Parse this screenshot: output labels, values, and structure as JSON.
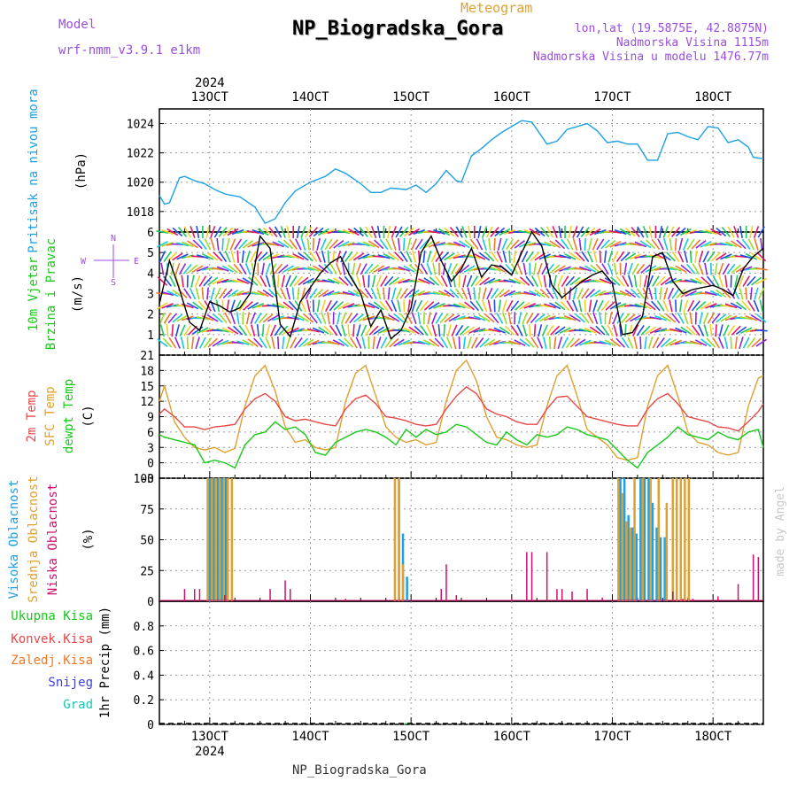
{
  "header": {
    "subtitle": "Meteogram",
    "title": "NP_Biogradska_Gora",
    "model_label": "Model",
    "model_name": "wrf-nmm_v3.9.1 e1km",
    "coords": "lon,lat (19.5875E, 42.8875N)",
    "elevation": "Nadmorska Visina 1115m",
    "model_elevation": "Nadmorska Visina u modelu 1476.77m",
    "credit": "made by Angel",
    "footer": "NP_Biogradska_Gora"
  },
  "colors": {
    "pressure": "#1ea0e6",
    "temp2m": "#e84848",
    "sfc": "#e0a030",
    "dew": "#18c818",
    "cloud_high": "#1ea0e6",
    "cloud_mid": "#e0a030",
    "cloud_low": "#d0106e",
    "title_grey": "#888888"
  },
  "time_axis": {
    "year_top": "2024",
    "year_bottom": "2024",
    "start_day": 12.5,
    "end_day": 18.5,
    "ticks": [
      {
        "day": 13,
        "label": "13OCT"
      },
      {
        "day": 14,
        "label": "14OCT"
      },
      {
        "day": 15,
        "label": "15OCT"
      },
      {
        "day": 16,
        "label": "16OCT"
      },
      {
        "day": 17,
        "label": "17OCT"
      },
      {
        "day": 18,
        "label": "18OCT"
      }
    ]
  },
  "chart_data": [
    {
      "type": "line",
      "panel": "pressure",
      "labels": [
        "Pritisak na nivou mora",
        "(hPa)"
      ],
      "ylim": [
        1016.6,
        1025.0
      ],
      "yticks": [
        1018,
        1020,
        1022,
        1024
      ],
      "series": [
        {
          "name": "Pritisak na nivou mora",
          "x": [
            12.5,
            12.55,
            12.6,
            12.7,
            12.75,
            12.85,
            12.95,
            13.05,
            13.15,
            13.3,
            13.45,
            13.55,
            13.65,
            13.75,
            13.85,
            14.0,
            14.15,
            14.25,
            14.35,
            14.5,
            14.6,
            14.7,
            14.8,
            14.95,
            15.05,
            15.15,
            15.25,
            15.35,
            15.45,
            15.5,
            15.6,
            15.7,
            15.8,
            15.9,
            16.0,
            16.1,
            16.2,
            16.25,
            16.35,
            16.45,
            16.55,
            16.65,
            16.75,
            16.85,
            16.95,
            17.05,
            17.15,
            17.25,
            17.35,
            17.45,
            17.55,
            17.65,
            17.75,
            17.85,
            17.95,
            18.05,
            18.15,
            18.25,
            18.35,
            18.4,
            18.5
          ],
          "y": [
            1019.1,
            1018.5,
            1018.6,
            1020.3,
            1020.4,
            1020.1,
            1019.9,
            1019.5,
            1019.2,
            1019.0,
            1018.3,
            1017.2,
            1017.5,
            1018.6,
            1019.4,
            1020.0,
            1020.4,
            1020.9,
            1020.6,
            1019.9,
            1019.3,
            1019.3,
            1019.6,
            1019.5,
            1019.8,
            1019.3,
            1019.9,
            1020.8,
            1020.1,
            1020.0,
            1021.8,
            1022.3,
            1022.9,
            1023.4,
            1023.8,
            1024.2,
            1024.1,
            1023.6,
            1022.6,
            1022.8,
            1023.6,
            1023.8,
            1024.0,
            1023.5,
            1022.7,
            1022.8,
            1022.6,
            1022.6,
            1021.5,
            1021.5,
            1023.3,
            1023.4,
            1023.1,
            1022.9,
            1023.8,
            1023.7,
            1022.7,
            1022.9,
            1022.4,
            1021.7,
            1021.6
          ]
        }
      ]
    },
    {
      "type": "wind",
      "panel": "wind",
      "labels": [
        "10m Vjetar",
        "Brzina i Pravac",
        "(m/s)"
      ],
      "compass": [
        "N",
        "W",
        "E",
        "S"
      ],
      "ylim": [
        0,
        6
      ],
      "yticks": [
        1,
        2,
        3,
        4,
        5,
        6
      ],
      "series": [
        {
          "name": "Brzina",
          "x": [
            12.5,
            12.6,
            12.7,
            12.8,
            12.9,
            13.0,
            13.1,
            13.2,
            13.3,
            13.4,
            13.5,
            13.6,
            13.7,
            13.8,
            13.9,
            14.0,
            14.1,
            14.2,
            14.3,
            14.4,
            14.5,
            14.6,
            14.7,
            14.8,
            14.9,
            15.0,
            15.1,
            15.2,
            15.3,
            15.4,
            15.5,
            15.6,
            15.7,
            15.8,
            15.9,
            16.0,
            16.1,
            16.2,
            16.3,
            16.4,
            16.5,
            16.6,
            16.7,
            16.8,
            16.9,
            17.0,
            17.1,
            17.2,
            17.3,
            17.4,
            17.5,
            17.6,
            17.7,
            17.8,
            17.9,
            18.0,
            18.1,
            18.2,
            18.3,
            18.4,
            18.5
          ],
          "y": [
            2.5,
            4.6,
            3.2,
            1.6,
            1.2,
            2.6,
            2.4,
            2.1,
            2.3,
            3.0,
            5.8,
            5.2,
            1.5,
            0.9,
            2.6,
            3.3,
            4.0,
            4.5,
            4.8,
            3.8,
            3.0,
            1.4,
            2.2,
            0.8,
            1.2,
            2.3,
            5.0,
            5.8,
            4.6,
            3.6,
            4.2,
            5.2,
            3.8,
            4.4,
            4.3,
            3.9,
            5.0,
            6.0,
            5.3,
            3.4,
            2.8,
            3.2,
            3.6,
            3.9,
            4.1,
            3.5,
            1.0,
            1.1,
            1.9,
            4.8,
            5.0,
            3.6,
            3.0,
            3.2,
            3.3,
            3.4,
            3.2,
            2.9,
            4.2,
            4.8,
            5.2
          ]
        }
      ]
    },
    {
      "type": "line",
      "panel": "temperature",
      "labels": [
        "2m Temp",
        "SFC Temp",
        "dewpt Temp",
        "(C)"
      ],
      "ylim": [
        -3,
        21
      ],
      "yticks": [
        -3,
        0,
        3,
        6,
        9,
        12,
        15,
        18,
        21
      ],
      "series": [
        {
          "name": "2m Temp",
          "x": [
            12.5,
            12.55,
            12.65,
            12.75,
            12.85,
            12.95,
            13.05,
            13.15,
            13.25,
            13.35,
            13.45,
            13.55,
            13.65,
            13.75,
            13.85,
            13.95,
            14.05,
            14.15,
            14.25,
            14.35,
            14.45,
            14.55,
            14.65,
            14.75,
            14.85,
            14.95,
            15.05,
            15.15,
            15.25,
            15.35,
            15.45,
            15.55,
            15.65,
            15.75,
            15.85,
            15.95,
            16.05,
            16.15,
            16.25,
            16.35,
            16.45,
            16.55,
            16.65,
            16.75,
            16.85,
            16.95,
            17.05,
            17.15,
            17.25,
            17.35,
            17.45,
            17.55,
            17.65,
            17.75,
            17.85,
            17.95,
            18.05,
            18.15,
            18.25,
            18.35,
            18.45,
            18.5
          ],
          "y": [
            9.5,
            10.5,
            9.0,
            7.0,
            7.0,
            6.5,
            7.0,
            7.2,
            7.5,
            10.5,
            12.5,
            13.5,
            12.0,
            9.0,
            8.2,
            8.5,
            8.0,
            7.5,
            7.2,
            10.5,
            12.5,
            13.2,
            11.5,
            9.0,
            8.7,
            8.2,
            7.5,
            7.2,
            7.5,
            10.5,
            13.0,
            14.8,
            13.5,
            10.5,
            9.5,
            9.0,
            8.0,
            7.5,
            7.5,
            10.5,
            12.8,
            13.0,
            11.0,
            9.0,
            8.5,
            8.0,
            7.5,
            7.2,
            7.2,
            10.5,
            12.5,
            13.5,
            11.5,
            9.0,
            8.5,
            8.0,
            7.0,
            6.8,
            6.2,
            8.0,
            10.0,
            11.5
          ]
        },
        {
          "name": "SFC Temp",
          "x": [
            12.5,
            12.55,
            12.65,
            12.75,
            12.85,
            12.95,
            13.05,
            13.15,
            13.25,
            13.35,
            13.45,
            13.55,
            13.65,
            13.75,
            13.85,
            13.95,
            14.05,
            14.15,
            14.25,
            14.35,
            14.45,
            14.55,
            14.65,
            14.75,
            14.85,
            14.95,
            15.05,
            15.15,
            15.25,
            15.35,
            15.45,
            15.55,
            15.65,
            15.75,
            15.85,
            15.95,
            16.05,
            16.15,
            16.25,
            16.35,
            16.45,
            16.55,
            16.65,
            16.75,
            16.85,
            16.95,
            17.05,
            17.15,
            17.25,
            17.35,
            17.45,
            17.55,
            17.65,
            17.75,
            17.85,
            17.95,
            18.05,
            18.15,
            18.25,
            18.35,
            18.45,
            18.5
          ],
          "y": [
            12.0,
            15.0,
            8.0,
            5.0,
            3.0,
            2.5,
            3.0,
            2.0,
            2.8,
            11.0,
            17.0,
            19.0,
            14.0,
            7.0,
            4.0,
            4.5,
            3.0,
            2.5,
            3.0,
            12.0,
            17.5,
            19.0,
            13.0,
            7.0,
            5.0,
            4.0,
            4.5,
            3.5,
            4.0,
            12.0,
            18.0,
            20.0,
            16.0,
            9.0,
            5.0,
            4.5,
            3.5,
            3.0,
            3.5,
            11.0,
            17.0,
            19.0,
            13.0,
            6.5,
            5.0,
            3.5,
            1.0,
            0.5,
            1.0,
            11.0,
            17.0,
            19.0,
            13.0,
            6.0,
            4.0,
            3.5,
            2.0,
            1.5,
            2.0,
            11.0,
            16.5,
            17.0
          ]
        },
        {
          "name": "dewpt Temp",
          "x": [
            12.5,
            12.55,
            12.65,
            12.75,
            12.85,
            12.95,
            13.05,
            13.15,
            13.25,
            13.35,
            13.45,
            13.55,
            13.65,
            13.75,
            13.85,
            13.95,
            14.05,
            14.15,
            14.25,
            14.35,
            14.45,
            14.55,
            14.65,
            14.75,
            14.85,
            14.95,
            15.05,
            15.15,
            15.25,
            15.35,
            15.45,
            15.55,
            15.65,
            15.75,
            15.85,
            15.95,
            16.05,
            16.15,
            16.25,
            16.35,
            16.45,
            16.55,
            16.65,
            16.75,
            16.85,
            16.95,
            17.05,
            17.15,
            17.25,
            17.35,
            17.45,
            17.55,
            17.65,
            17.75,
            17.85,
            17.95,
            18.05,
            18.15,
            18.25,
            18.35,
            18.45,
            18.5
          ],
          "y": [
            5.5,
            5.0,
            4.5,
            4.0,
            3.5,
            0.0,
            0.5,
            0.0,
            -1.0,
            3.5,
            5.5,
            6.0,
            8.0,
            6.5,
            7.0,
            5.5,
            2.0,
            1.5,
            4.0,
            5.0,
            6.0,
            6.5,
            6.0,
            5.0,
            3.5,
            6.5,
            5.0,
            6.5,
            5.5,
            6.0,
            7.5,
            7.0,
            5.5,
            4.0,
            3.5,
            6.0,
            4.5,
            3.5,
            5.5,
            5.0,
            5.5,
            7.0,
            6.5,
            5.5,
            5.0,
            4.5,
            2.5,
            0.5,
            -1.0,
            2.0,
            3.5,
            5.0,
            7.0,
            5.5,
            5.0,
            4.5,
            6.0,
            5.0,
            4.5,
            6.0,
            6.5,
            3.0
          ]
        }
      ]
    },
    {
      "type": "bar",
      "panel": "clouds",
      "labels": [
        "Visoka Oblacnost",
        "Srednja Oblacnost",
        "Niska Oblacnost",
        "(%)"
      ],
      "ylim": [
        0,
        100
      ],
      "yticks": [
        0,
        25,
        50,
        75,
        100
      ],
      "series": [
        {
          "name": "Visoka Oblacnost",
          "x": [
            13.0,
            13.04,
            13.08,
            13.12,
            13.16,
            14.88,
            14.92,
            14.96,
            17.08,
            17.12,
            17.16,
            17.2,
            17.24,
            17.28,
            17.32,
            17.36,
            17.4,
            17.44,
            17.48,
            17.52
          ],
          "values": [
            100,
            100,
            100,
            100,
            100,
            100,
            55,
            20,
            100,
            100,
            70,
            60,
            55,
            100,
            100,
            100,
            80,
            60,
            52,
            52
          ]
        },
        {
          "name": "Srednja Oblacnost",
          "x": [
            12.98,
            13.02,
            13.06,
            13.1,
            13.14,
            13.18,
            13.22,
            14.84,
            14.88,
            14.92,
            17.06,
            17.1,
            17.14,
            17.18,
            17.22,
            17.3,
            17.38,
            17.46,
            17.54,
            17.6,
            17.64,
            17.68,
            17.72,
            17.76
          ],
          "values": [
            100,
            100,
            100,
            100,
            100,
            100,
            100,
            100,
            100,
            30,
            100,
            88,
            65,
            60,
            100,
            100,
            100,
            100,
            80,
            100,
            100,
            100,
            100,
            100
          ]
        },
        {
          "name": "Niska Oblacnost",
          "x": [
            12.75,
            12.85,
            12.9,
            13.15,
            13.6,
            13.75,
            13.8,
            14.35,
            15.3,
            15.35,
            15.45,
            16.0,
            16.15,
            16.2,
            16.35,
            16.45,
            16.5,
            16.6,
            16.75,
            16.9,
            17.6,
            17.7,
            17.8,
            18.05,
            18.25,
            18.4,
            18.45
          ],
          "values": [
            10,
            10,
            10,
            5,
            10,
            17,
            10,
            2,
            10,
            30,
            5,
            3,
            40,
            40,
            40,
            10,
            10,
            8,
            10,
            3,
            8,
            2,
            2,
            4,
            14,
            38,
            36
          ]
        }
      ]
    },
    {
      "type": "bar",
      "panel": "precipitation",
      "labels": [
        "Ukupna Kisa",
        "Konvek.Kisa",
        "Zaledj.Kisa",
        "Snijeg",
        "Grad",
        "1hr Precip (mm)"
      ],
      "ylim": [
        0,
        1.0
      ],
      "yticks": [
        0,
        0.2,
        0.4,
        0.6,
        0.8
      ],
      "series": [
        {
          "name": "Ukupna Kisa",
          "x": [
            14.95,
            14.98
          ],
          "values": [
            0.01,
            0.015
          ]
        }
      ]
    }
  ]
}
